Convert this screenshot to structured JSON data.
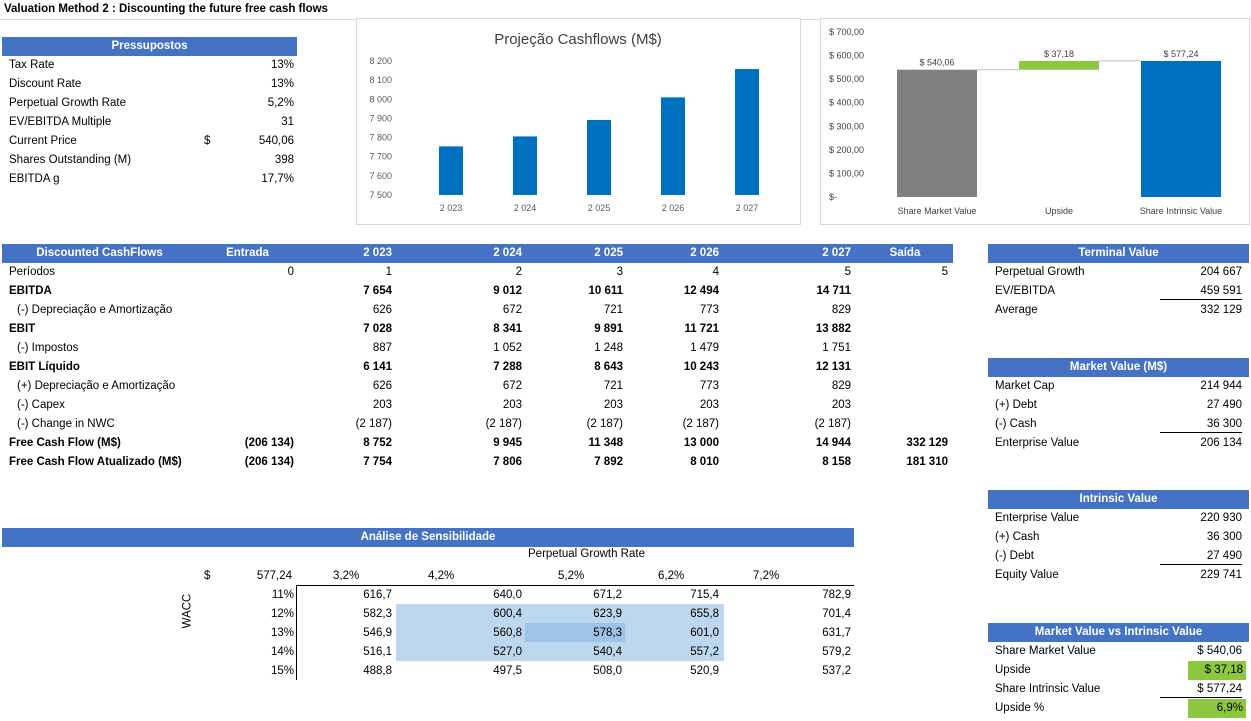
{
  "title": "Valuation Method 2 : Discounting the future free cash flows",
  "assumptions": {
    "header": "Pressupostos",
    "rows": [
      {
        "label": "Tax Rate",
        "prefix": "",
        "value": "13%"
      },
      {
        "label": "Discount Rate",
        "prefix": "",
        "value": "13%"
      },
      {
        "label": "Perpetual Growth Rate",
        "prefix": "",
        "value": "5,2%"
      },
      {
        "label": "EV/EBITDA Multiple",
        "prefix": "",
        "value": "31"
      },
      {
        "label": "Current Price",
        "prefix": "$",
        "value": "540,06"
      },
      {
        "label": "Shares Outstanding (M)",
        "prefix": "",
        "value": "398"
      },
      {
        "label": "EBITDA g",
        "prefix": "",
        "value": "17,7%"
      }
    ]
  },
  "chart_data": [
    {
      "type": "bar",
      "title": "Projeção Cashflows (M$)",
      "categories": [
        "2 023",
        "2 024",
        "2 025",
        "2 026",
        "2 027"
      ],
      "values": [
        7754,
        7806,
        7892,
        8010,
        8158
      ],
      "ylim": [
        7500,
        8200
      ],
      "yticks": [
        "7 500",
        "7 600",
        "7 700",
        "7 800",
        "7 900",
        "8 000",
        "8 100",
        "8 200"
      ],
      "color": "#0070C0"
    },
    {
      "type": "bar",
      "subtype": "waterfall",
      "categories": [
        "Share Market Value",
        "Upside",
        "Share Intrinsic Value"
      ],
      "values": [
        540.06,
        37.18,
        577.24
      ],
      "labels": [
        "$ 540,06",
        "$ 37,18",
        "$ 577,24"
      ],
      "ylim": [
        0,
        700
      ],
      "yticks": [
        "$-",
        "$ 100,00",
        "$ 200,00",
        "$ 300,00",
        "$ 400,00",
        "$ 500,00",
        "$ 600,00",
        "$ 700,00"
      ],
      "colors": [
        "#808080",
        "#8DC63F",
        "#0070C0"
      ]
    }
  ],
  "dcf": {
    "headers": [
      "Discounted CashFlows",
      "Entrada",
      "2 023",
      "2 024",
      "2 025",
      "2 026",
      "2 027",
      "Saída"
    ],
    "rows": [
      {
        "label": "Períodos",
        "bold": false,
        "indent": false,
        "values": [
          "0",
          "1",
          "2",
          "3",
          "4",
          "5",
          "5"
        ]
      },
      {
        "label": "EBITDA",
        "bold": true,
        "indent": false,
        "values": [
          "",
          "7 654",
          "9 012",
          "10 611",
          "12 494",
          "14 711",
          ""
        ]
      },
      {
        "label": "(-) Depreciação e Amortização",
        "bold": false,
        "indent": true,
        "values": [
          "",
          "626",
          "672",
          "721",
          "773",
          "829",
          ""
        ]
      },
      {
        "label": "EBIT",
        "bold": true,
        "indent": false,
        "values": [
          "",
          "7 028",
          "8 341",
          "9 891",
          "11 721",
          "13 882",
          ""
        ]
      },
      {
        "label": "(-) Impostos",
        "bold": false,
        "indent": true,
        "values": [
          "",
          "887",
          "1 052",
          "1 248",
          "1 479",
          "1 751",
          ""
        ]
      },
      {
        "label": "EBIT Líquido",
        "bold": true,
        "indent": false,
        "values": [
          "",
          "6 141",
          "7 288",
          "8 643",
          "10 243",
          "12 131",
          ""
        ]
      },
      {
        "label": "(+) Depreciação e Amortização",
        "bold": false,
        "indent": true,
        "values": [
          "",
          "626",
          "672",
          "721",
          "773",
          "829",
          ""
        ]
      },
      {
        "label": "(-) Capex",
        "bold": false,
        "indent": true,
        "values": [
          "",
          "203",
          "203",
          "203",
          "203",
          "203",
          ""
        ]
      },
      {
        "label": "(-) Change in NWC",
        "bold": false,
        "indent": true,
        "values": [
          "",
          "(2 187)",
          "(2 187)",
          "(2 187)",
          "(2 187)",
          "(2 187)",
          ""
        ]
      },
      {
        "label": "Free Cash Flow (M$)",
        "bold": true,
        "indent": false,
        "values": [
          "(206 134)",
          "8 752",
          "9 945",
          "11 348",
          "13 000",
          "14 944",
          "332 129"
        ]
      },
      {
        "label": "Free Cash Flow Atualizado (M$)",
        "bold": true,
        "indent": false,
        "values": [
          "(206 134)",
          "7 754",
          "7 806",
          "7 892",
          "8 010",
          "8 158",
          "181 310"
        ]
      }
    ]
  },
  "terminal": {
    "header": "Terminal Value",
    "rows": [
      {
        "label": "Perpetual Growth",
        "value": "204 667"
      },
      {
        "label": "EV/EBITDA",
        "value": "459 591"
      },
      {
        "label": "Average",
        "value": "332 129"
      }
    ]
  },
  "market": {
    "header": "Market Value (M$)",
    "rows": [
      {
        "label": "Market Cap",
        "value": "214 944"
      },
      {
        "label": "(+) Debt",
        "value": "27 490"
      },
      {
        "label": "(-) Cash",
        "value": "36 300"
      },
      {
        "label": "Enterprise Value",
        "value": "206 134"
      }
    ]
  },
  "intrinsic": {
    "header": "Intrinsic Value",
    "rows": [
      {
        "label": "Enterprise Value",
        "value": "220 930"
      },
      {
        "label": "(+) Cash",
        "value": "36 300"
      },
      {
        "label": "(-) Debt",
        "value": "27 490"
      },
      {
        "label": "Equity Value",
        "value": "229 741"
      }
    ]
  },
  "mvi": {
    "header": "Market Value vs Intrinsic Value",
    "rows": [
      {
        "label": "Share Market Value",
        "value": "$ 540,06"
      },
      {
        "label": "Upside",
        "value": "$  37,18"
      },
      {
        "label": "Share Intrinsic Value",
        "value": "$ 577,24"
      },
      {
        "label": "Upside %",
        "value": "6,9%"
      }
    ]
  },
  "sensitivity": {
    "header": "Análise de Sensibilidade",
    "col_title": "Perpetual Growth Rate",
    "row_title": "WACC",
    "corner_prefix": "$",
    "corner_value": "577,24",
    "cols": [
      "3,2%",
      "4,2%",
      "5,2%",
      "6,2%",
      "7,2%"
    ],
    "rows": [
      "11%",
      "12%",
      "13%",
      "14%",
      "15%"
    ],
    "values": [
      [
        "616,7",
        "640,0",
        "671,2",
        "715,4",
        "782,9"
      ],
      [
        "582,3",
        "600,4",
        "623,9",
        "655,8",
        "701,4"
      ],
      [
        "546,9",
        "560,8",
        "578,3",
        "601,0",
        "631,7"
      ],
      [
        "516,1",
        "527,0",
        "540,4",
        "557,2",
        "579,2"
      ],
      [
        "488,8",
        "497,5",
        "508,0",
        "520,9",
        "537,2"
      ]
    ]
  }
}
